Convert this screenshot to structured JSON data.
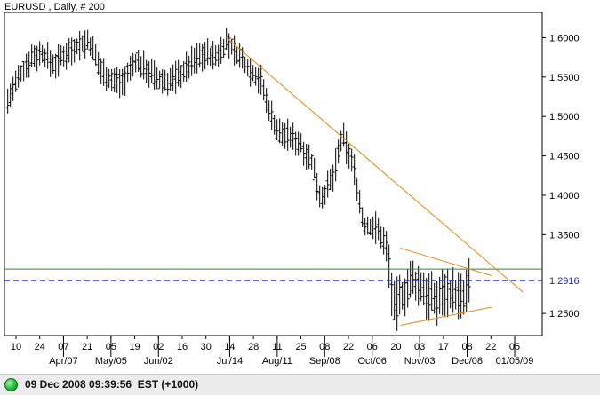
{
  "chart_data": {
    "type": "ohlc",
    "title": "EURUSD , Daily, # 200",
    "yticks": [
      1.6,
      1.55,
      1.5,
      1.45,
      1.4,
      1.35,
      1.25
    ],
    "ytick_labels": [
      "1.6000",
      "1.5500",
      "1.5000",
      "1.4500",
      "1.4000",
      "1.3500",
      "1.2500"
    ],
    "ylim": [
      1.222,
      1.632
    ],
    "current_price": 1.2916,
    "current_price_label": "1.2916",
    "support_level": 1.3063,
    "xaxis_day_labels": [
      "10",
      "24",
      "07",
      "21",
      "05",
      "19",
      "02",
      "16",
      "30",
      "14",
      "28",
      "11",
      "25",
      "08",
      "22",
      "06",
      "20",
      "03",
      "17",
      "08",
      "22",
      "05"
    ],
    "xaxis_month_labels": [
      "Apr/07",
      "May/05",
      "Jun/02",
      "Jul/14",
      "Aug/11",
      "Sep/08",
      "Oct/06",
      "Nov/03",
      "Dec/08",
      "01/05/09"
    ],
    "trendlines": [
      {
        "name": "long-term resistance",
        "from": [
          "2008-07-15",
          1.6
        ],
        "to": [
          "2009-01-10",
          1.277
        ]
      },
      {
        "name": "triangle upper",
        "from": [
          "2008-10-28",
          1.333
        ],
        "to": [
          "2008-12-22",
          1.298
        ]
      },
      {
        "name": "triangle lower",
        "from": [
          "2008-10-28",
          1.235
        ],
        "to": [
          "2008-12-22",
          1.258
        ]
      }
    ],
    "price_path": [
      [
        "2008-03-05",
        1.52
      ],
      [
        "2008-03-12",
        1.55
      ],
      [
        "2008-03-19",
        1.575
      ],
      [
        "2008-03-26",
        1.58
      ],
      [
        "2008-04-02",
        1.565
      ],
      [
        "2008-04-09",
        1.58
      ],
      [
        "2008-04-16",
        1.59
      ],
      [
        "2008-04-23",
        1.595
      ],
      [
        "2008-04-30",
        1.56
      ],
      [
        "2008-05-07",
        1.545
      ],
      [
        "2008-05-14",
        1.545
      ],
      [
        "2008-05-21",
        1.57
      ],
      [
        "2008-05-28",
        1.56
      ],
      [
        "2008-06-04",
        1.545
      ],
      [
        "2008-06-11",
        1.545
      ],
      [
        "2008-06-18",
        1.555
      ],
      [
        "2008-06-25",
        1.57
      ],
      [
        "2008-07-02",
        1.58
      ],
      [
        "2008-07-09",
        1.575
      ],
      [
        "2008-07-15",
        1.595
      ],
      [
        "2008-07-22",
        1.578
      ],
      [
        "2008-07-29",
        1.56
      ],
      [
        "2008-08-05",
        1.545
      ],
      [
        "2008-08-08",
        1.52
      ],
      [
        "2008-08-15",
        1.48
      ],
      [
        "2008-08-22",
        1.475
      ],
      [
        "2008-08-29",
        1.465
      ],
      [
        "2008-09-05",
        1.44
      ],
      [
        "2008-09-10",
        1.395
      ],
      [
        "2008-09-17",
        1.42
      ],
      [
        "2008-09-23",
        1.475
      ],
      [
        "2008-09-30",
        1.435
      ],
      [
        "2008-10-06",
        1.36
      ],
      [
        "2008-10-13",
        1.36
      ],
      [
        "2008-10-20",
        1.335
      ],
      [
        "2008-10-24",
        1.255
      ],
      [
        "2008-10-28",
        1.27
      ],
      [
        "2008-11-04",
        1.29
      ],
      [
        "2008-11-11",
        1.28
      ],
      [
        "2008-11-18",
        1.265
      ],
      [
        "2008-11-24",
        1.28
      ],
      [
        "2008-12-01",
        1.275
      ],
      [
        "2008-12-05",
        1.265
      ],
      [
        "2008-12-09",
        1.29
      ]
    ]
  },
  "status": {
    "text": "09 Dec 2008 09:39:56  EST (+1000)"
  }
}
